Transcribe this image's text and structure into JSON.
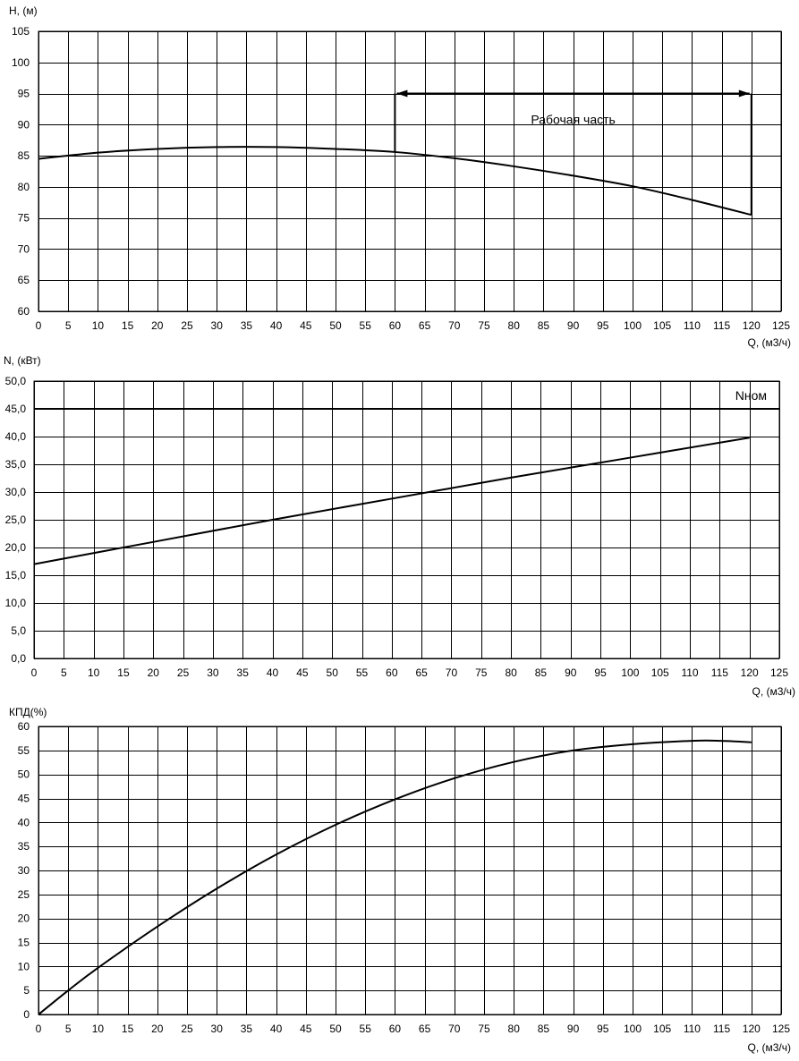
{
  "chart_data": [
    {
      "type": "line",
      "title": "",
      "xlabel": "Q, (м3/ч)",
      "ylabel": "H, (м)",
      "xlim": [
        0,
        125
      ],
      "ylim": [
        60,
        105
      ],
      "x_ticks": [
        "0",
        "5",
        "10",
        "15",
        "20",
        "25",
        "30",
        "35",
        "40",
        "45",
        "50",
        "55",
        "60",
        "65",
        "70",
        "75",
        "80",
        "85",
        "90",
        "95",
        "100",
        "105",
        "110",
        "115",
        "120",
        "125"
      ],
      "y_ticks": [
        "60",
        "65",
        "70",
        "75",
        "80",
        "85",
        "90",
        "95",
        "100",
        "105"
      ],
      "grid": true,
      "series": [
        {
          "x": [
            0,
            10,
            20,
            30,
            40,
            50,
            60,
            70,
            80,
            90,
            100,
            110,
            120
          ],
          "y": [
            84.5,
            85.5,
            86.1,
            86.4,
            86.4,
            86.1,
            85.6,
            84.6,
            83.3,
            81.8,
            80.1,
            77.9,
            75.5
          ]
        }
      ],
      "annotations": [
        {
          "text": "Рабочая часть",
          "x_range": [
            60,
            120
          ],
          "y": 95
        }
      ]
    },
    {
      "type": "line",
      "title": "",
      "xlabel": "Q, (м3/ч)",
      "ylabel": "N, (кВт)",
      "xlim": [
        0,
        125
      ],
      "ylim": [
        0,
        50
      ],
      "x_ticks": [
        "0",
        "5",
        "10",
        "15",
        "20",
        "25",
        "30",
        "35",
        "40",
        "45",
        "50",
        "55",
        "60",
        "65",
        "70",
        "75",
        "80",
        "85",
        "90",
        "95",
        "100",
        "105",
        "110",
        "115",
        "120",
        "125"
      ],
      "y_ticks": [
        "0,0",
        "5,0",
        "10,0",
        "15,0",
        "20,0",
        "25,0",
        "30,0",
        "35,0",
        "40,0",
        "45,0",
        "50,0"
      ],
      "grid": true,
      "series": [
        {
          "x": [
            0,
            20,
            40,
            60,
            80,
            100,
            120
          ],
          "y": [
            17.0,
            21.0,
            25.0,
            28.8,
            32.6,
            36.2,
            39.8
          ]
        }
      ],
      "reference_line": {
        "label": "Nном",
        "y": 45
      }
    },
    {
      "type": "line",
      "title": "",
      "xlabel": "Q, (м3/ч)",
      "ylabel": "КПД(%)",
      "xlim": [
        0,
        125
      ],
      "ylim": [
        0,
        60
      ],
      "x_ticks": [
        "0",
        "5",
        "10",
        "15",
        "20",
        "25",
        "30",
        "35",
        "40",
        "45",
        "50",
        "55",
        "60",
        "65",
        "70",
        "75",
        "80",
        "85",
        "90",
        "95",
        "100",
        "105",
        "110",
        "115",
        "120",
        "125"
      ],
      "y_ticks": [
        "0",
        "5",
        "10",
        "15",
        "20",
        "25",
        "30",
        "35",
        "40",
        "45",
        "50",
        "55",
        "60"
      ],
      "grid": true,
      "series": [
        {
          "x": [
            0,
            5,
            10,
            20,
            30,
            40,
            50,
            60,
            70,
            80,
            90,
            100,
            110,
            115,
            120
          ],
          "y": [
            0,
            5.0,
            9.7,
            18.3,
            26.2,
            33.3,
            39.5,
            44.8,
            49.2,
            52.6,
            55.0,
            56.3,
            57.0,
            57.0,
            56.7
          ]
        }
      ]
    }
  ]
}
